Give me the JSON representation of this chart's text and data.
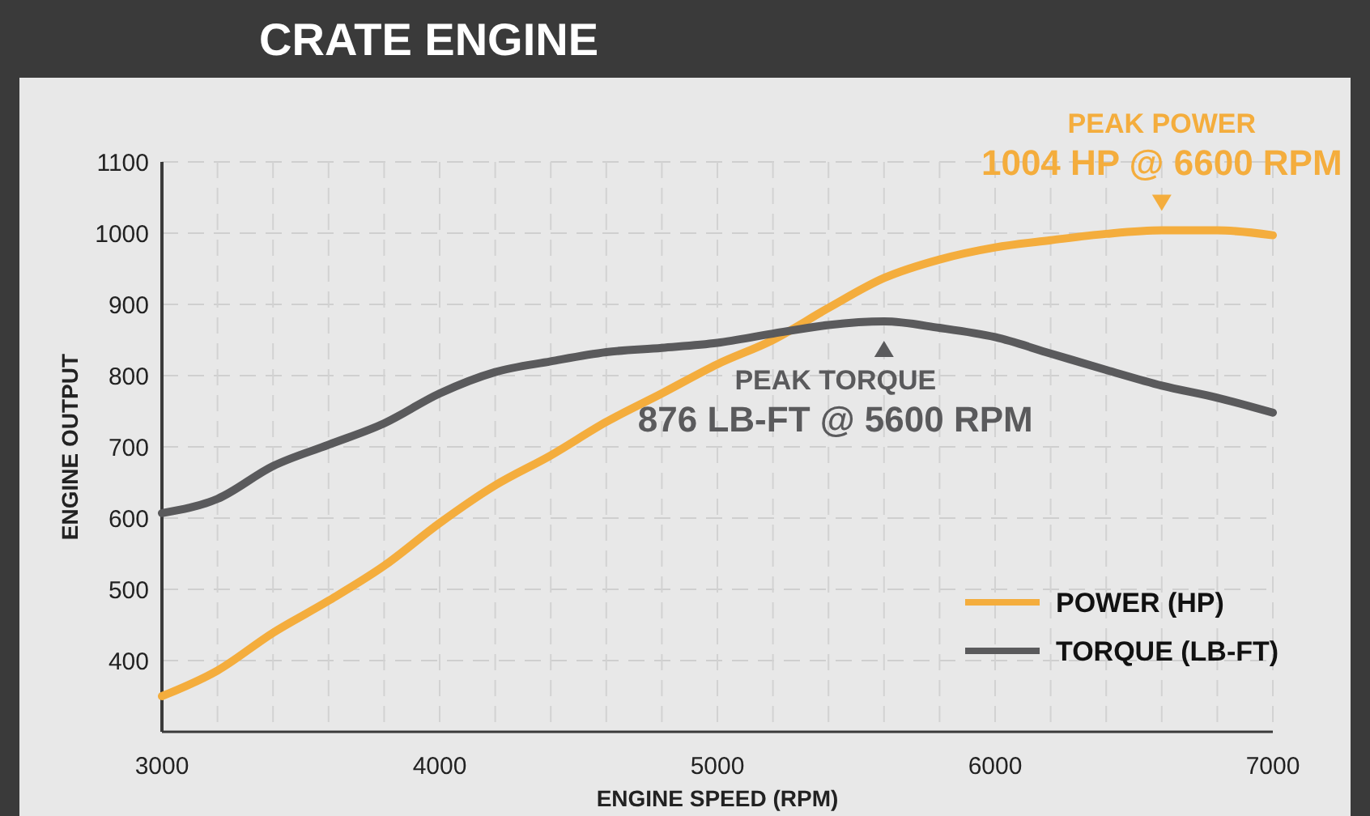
{
  "chart_data": {
    "type": "line",
    "title": "CRATE ENGINE",
    "xlabel": "ENGINE SPEED (RPM)",
    "ylabel": "ENGINE OUTPUT",
    "x": [
      3000,
      3200,
      3400,
      3600,
      3800,
      4000,
      4200,
      4400,
      4600,
      4800,
      5000,
      5200,
      5400,
      5600,
      5800,
      6000,
      6200,
      6400,
      6600,
      6800,
      7000
    ],
    "series": [
      {
        "name": "POWER (HP)",
        "color": "#f4ad3d",
        "values": [
          350,
          386,
          439,
          484,
          533,
          593,
          646,
          688,
          735,
          775,
          816,
          850,
          895,
          937,
          963,
          980,
          990,
          999,
          1004,
          1004,
          997
        ]
      },
      {
        "name": "TORQUE (LB-FT)",
        "color": "#5a5a5c",
        "values": [
          607,
          627,
          673,
          703,
          733,
          775,
          805,
          820,
          833,
          839,
          846,
          859,
          871,
          876,
          867,
          854,
          831,
          808,
          786,
          769,
          748
        ]
      }
    ],
    "annotations": [
      {
        "text": "PEAK POWER\n1004 HP @ 6600 RPM",
        "x": 6600,
        "y": 1004
      },
      {
        "text": "PEAK TORQUE\n876 LB-FT @ 5600 RPM",
        "x": 5600,
        "y": 876
      }
    ],
    "xlim": [
      3000,
      7000
    ],
    "ylim": [
      300,
      1100
    ],
    "xticks": [
      3000,
      {
        "value": 3200,
        "label": null
      },
      {
        "value": 3400,
        "label": null
      },
      {
        "value": 3600,
        "label": null
      },
      {
        "value": 3800,
        "label": null
      },
      4000,
      {
        "value": 4200,
        "label": null
      },
      {
        "value": 4400,
        "label": null
      },
      {
        "value": 4600,
        "label": null
      },
      {
        "value": 4800,
        "label": null
      },
      5000,
      {
        "value": 5200,
        "label": null
      },
      {
        "value": 5400,
        "label": null
      },
      {
        "value": 5600,
        "label": null
      },
      {
        "value": 5800,
        "label": null
      },
      6000,
      {
        "value": 6200,
        "label": null
      },
      {
        "value": 6400,
        "label": null
      },
      {
        "value": 6600,
        "label": null
      },
      {
        "value": 6800,
        "label": null
      },
      7000
    ],
    "yticks": [
      400,
      500,
      600,
      700,
      800,
      900,
      1000,
      1100
    ],
    "grid": true,
    "legend": "bottom right",
    "marker": "none",
    "line_style": "solid"
  }
}
